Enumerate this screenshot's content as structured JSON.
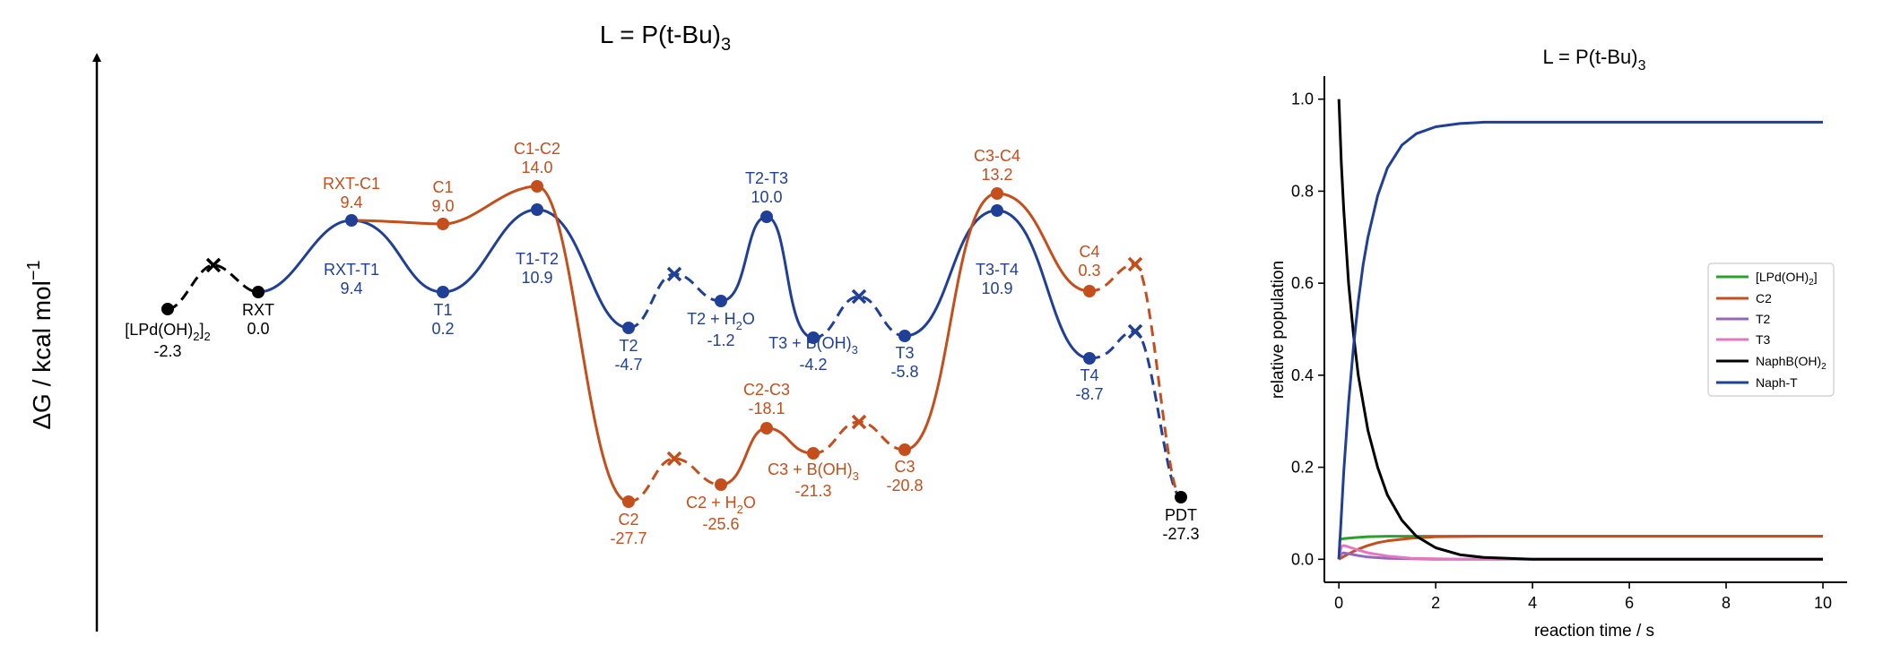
{
  "chart_data": [
    {
      "type": "energy-profile",
      "title": "L = P(t-Bu)3",
      "title_main": "L = P(t-Bu)",
      "title_sub": "3",
      "ylabel_main": "ΔG / kcal mol",
      "ylabel_sup": "−1",
      "colors": {
        "black": "#000000",
        "orange": "#c44e1c",
        "blue": "#203f96"
      },
      "states": [
        {
          "id": "LPd",
          "label_main": "[LPd(OH)",
          "label_sub1": "2",
          "label_mid": "]",
          "label_sub2": "2",
          "value": "-2.3",
          "g": -2.3,
          "color": "black",
          "label_pos": "below"
        },
        {
          "id": "RXT",
          "label": "RXT",
          "value": "0.0",
          "g": 0.0,
          "color": "black",
          "label_pos": "below"
        },
        {
          "id": "RXT-C1",
          "label": "RXT-C1",
          "value": "9.4",
          "g": 9.4,
          "color": "orange",
          "label_pos": "above"
        },
        {
          "id": "RXT-T1",
          "label": "RXT-T1",
          "value": "9.4",
          "g": 9.4,
          "color": "blue",
          "label_pos": "below"
        },
        {
          "id": "C1",
          "label": "C1",
          "value": "9.0",
          "g": 9.0,
          "color": "orange",
          "label_pos": "above"
        },
        {
          "id": "T1",
          "label": "T1",
          "value": "0.2",
          "g": 0.2,
          "color": "blue",
          "label_pos": "below"
        },
        {
          "id": "C1-C2",
          "label": "C1-C2",
          "value": "14.0",
          "g": 14.0,
          "color": "orange",
          "label_pos": "above"
        },
        {
          "id": "T1-T2",
          "label": "T1-T2",
          "value": "10.9",
          "g": 10.9,
          "color": "blue",
          "label_pos": "below"
        },
        {
          "id": "T2",
          "label": "T2",
          "value": "-4.7",
          "g": -4.7,
          "color": "blue",
          "label_pos": "below"
        },
        {
          "id": "C2",
          "label": "C2",
          "value": "-27.7",
          "g": -27.7,
          "color": "orange",
          "label_pos": "below"
        },
        {
          "id": "T2+H2O",
          "label_main": "T2 + H",
          "label_sub": "2",
          "label_end": "O",
          "value": "-1.2",
          "g": -1.2,
          "color": "blue",
          "label_pos": "below"
        },
        {
          "id": "C2+H2O",
          "label_main": "C2 + H",
          "label_sub": "2",
          "label_end": "O",
          "value": "-25.6",
          "g": -25.6,
          "color": "orange",
          "label_pos": "below"
        },
        {
          "id": "T2-T3",
          "label": "T2-T3",
          "value": "10.0",
          "g": 10.0,
          "color": "blue",
          "label_pos": "above"
        },
        {
          "id": "C2-C3",
          "label": "C2-C3",
          "value": "-18.1",
          "g": -18.1,
          "color": "orange",
          "label_pos": "above"
        },
        {
          "id": "T3+BOH3",
          "label_main": "T3 + B(OH)",
          "label_sub": "3",
          "label_end": "",
          "value": "-4.2",
          "g": -4.2,
          "color": "blue",
          "label_pos": "below"
        },
        {
          "id": "C3+BOH3",
          "label_main": "C3 + B(OH)",
          "label_sub": "3",
          "label_end": "",
          "value": "-21.3",
          "g": -21.3,
          "color": "orange",
          "label_pos": "below"
        },
        {
          "id": "T3",
          "label": "T3",
          "value": "-5.8",
          "g": -5.8,
          "color": "blue",
          "label_pos": "below"
        },
        {
          "id": "C3",
          "label": "C3",
          "value": "-20.8",
          "g": -20.8,
          "color": "orange",
          "label_pos": "below"
        },
        {
          "id": "C3-C4",
          "label": "C3-C4",
          "value": "13.2",
          "g": 13.2,
          "color": "orange",
          "label_pos": "above"
        },
        {
          "id": "T3-T4",
          "label": "T3-T4",
          "value": "10.9",
          "g": 10.9,
          "color": "blue",
          "label_pos": "below"
        },
        {
          "id": "C4",
          "label": "C4",
          "value": "0.3",
          "g": 0.3,
          "color": "orange",
          "label_pos": "above"
        },
        {
          "id": "T4",
          "label": "T4",
          "value": "-8.7",
          "g": -8.7,
          "color": "blue",
          "label_pos": "below"
        },
        {
          "id": "PDT",
          "label": "PDT",
          "value": "-27.3",
          "g": -27.3,
          "color": "black",
          "label_pos": "below"
        }
      ]
    },
    {
      "type": "line",
      "title": "L = P(t-Bu)3",
      "title_main": "L = P(t-Bu)",
      "title_sub": "3",
      "xlabel": "reaction time / s",
      "ylabel": "relative population",
      "xlim": [
        -0.3,
        10.5
      ],
      "ylim": [
        -0.05,
        1.05
      ],
      "xticks": [
        0,
        2,
        4,
        6,
        8,
        10
      ],
      "yticks": [
        0.0,
        0.2,
        0.4,
        0.6,
        0.8,
        1.0
      ],
      "legend_position": "center-right",
      "series": [
        {
          "name_main": "[LPd(OH)",
          "name_sub": "2",
          "name_end": "]",
          "color": "#2ca02c",
          "x": [
            0,
            0.02,
            0.1,
            0.3,
            0.6,
            1.0,
            1.5,
            2.0,
            3.0,
            5.0,
            10.0
          ],
          "y": [
            0.0,
            0.043,
            0.045,
            0.047,
            0.049,
            0.05,
            0.05,
            0.05,
            0.05,
            0.05,
            0.05
          ]
        },
        {
          "name": "C2",
          "color": "#c44e1c",
          "x": [
            0,
            0.1,
            0.2,
            0.4,
            0.6,
            0.8,
            1.0,
            1.5,
            2.0,
            3.0,
            5.0,
            10.0
          ],
          "y": [
            0.0,
            0.006,
            0.012,
            0.022,
            0.03,
            0.036,
            0.04,
            0.046,
            0.049,
            0.05,
            0.05,
            0.05
          ]
        },
        {
          "name": "T2",
          "color": "#9467bd",
          "x": [
            0,
            0.05,
            0.1,
            0.2,
            0.4,
            0.6,
            1.0,
            2.0,
            10.0
          ],
          "y": [
            0.0,
            0.012,
            0.014,
            0.012,
            0.008,
            0.005,
            0.002,
            0.0,
            0.0
          ]
        },
        {
          "name": "T3",
          "color": "#e377c2",
          "x": [
            0,
            0.05,
            0.1,
            0.2,
            0.4,
            0.6,
            1.0,
            1.5,
            2.5,
            10.0
          ],
          "y": [
            0.0,
            0.028,
            0.03,
            0.027,
            0.02,
            0.014,
            0.007,
            0.002,
            0.0,
            0.0
          ]
        },
        {
          "name_main": "NaphB(OH)",
          "name_sub": "2",
          "name_end": "",
          "color": "#000000",
          "x": [
            0,
            0.05,
            0.1,
            0.2,
            0.3,
            0.4,
            0.6,
            0.8,
            1.0,
            1.3,
            1.6,
            2.0,
            2.5,
            3.0,
            4.0,
            10.0
          ],
          "y": [
            1.0,
            0.86,
            0.76,
            0.6,
            0.49,
            0.4,
            0.28,
            0.2,
            0.14,
            0.085,
            0.05,
            0.025,
            0.01,
            0.004,
            0.0,
            0.0
          ]
        },
        {
          "name": "Naph-T",
          "color": "#203f96",
          "x": [
            0,
            0.1,
            0.2,
            0.3,
            0.4,
            0.5,
            0.6,
            0.8,
            1.0,
            1.3,
            1.6,
            2.0,
            2.5,
            3.0,
            4.0,
            10.0
          ],
          "y": [
            0.0,
            0.19,
            0.34,
            0.46,
            0.56,
            0.64,
            0.7,
            0.79,
            0.85,
            0.9,
            0.925,
            0.94,
            0.947,
            0.95,
            0.95,
            0.95
          ]
        }
      ]
    }
  ]
}
